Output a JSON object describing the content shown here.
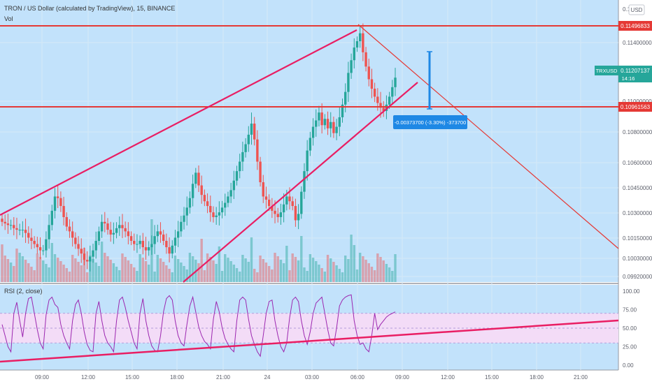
{
  "header": {
    "symbol_title": "TRON / US Dollar (calculated by TradingView), 15, BINANCE",
    "volume_label": "Vol",
    "rsi_label": "RSI (2, close)",
    "currency": "USD"
  },
  "price_axis": {
    "ticks": [
      "0.11400000",
      "0.11000000",
      "0.10800000",
      "0.10600000",
      "0.10450000",
      "0.10300000",
      "0.10150000",
      "0.10030000",
      "0.09920000"
    ],
    "top_partial": "0.11"
  },
  "price_badges": {
    "upper_level": "0.11496833",
    "lower_level": "0.10961563",
    "last_price": "0.11207137",
    "symbol": "TRXUSD",
    "countdown": "14:16"
  },
  "measure": {
    "label": "-0.00373700 (-3.30%) -373700"
  },
  "rsi_axis": {
    "ticks": [
      "100.00",
      "75.00",
      "50.00",
      "25.00",
      "0.00"
    ]
  },
  "time_axis": {
    "ticks": [
      "09:00",
      "12:00",
      "15:00",
      "18:00",
      "21:00",
      "24",
      "03:00",
      "06:00",
      "09:00",
      "12:00",
      "15:00",
      "18:00",
      "21:00"
    ]
  },
  "colors": {
    "background": "#c2e2fb",
    "up": "#26a69a",
    "down": "#ef5350",
    "level_line": "#e53935",
    "trend_line": "#e91e63",
    "rsi_line": "#9c27b0",
    "rsi_band": "#f3dcf7",
    "measure": "#1e88e5"
  },
  "chart_data": {
    "type": "candlestick",
    "symbol": "TRON / US Dollar",
    "interval": "15",
    "exchange": "BINANCE",
    "ylim": [
      0.0992,
      0.117
    ],
    "horizontal_levels": [
      0.11496833,
      0.10961563
    ],
    "last_price": 0.11207137,
    "measure": {
      "change": -0.003737,
      "percent": -3.3,
      "ticks": -373700
    },
    "closes": [
      0.103,
      0.1029,
      0.1028,
      0.1028,
      0.1026,
      0.1025,
      0.1025,
      0.1025,
      0.1023,
      0.102,
      0.1018,
      0.1016,
      0.1014,
      0.1012,
      0.1012,
      0.1019,
      0.1028,
      0.1037,
      0.1046,
      0.1045,
      0.104,
      0.1033,
      0.1027,
      0.1024,
      0.102,
      0.1016,
      0.1013,
      0.101,
      0.1006,
      0.1005,
      0.1008,
      0.1012,
      0.1018,
      0.1024,
      0.103,
      0.1029,
      0.1025,
      0.1022,
      0.1023,
      0.1026,
      0.1028,
      0.1026,
      0.1024,
      0.1021,
      0.1018,
      0.1016,
      0.1016,
      0.1018,
      0.1014,
      0.1012,
      0.1014,
      0.1016,
      0.1021,
      0.1024,
      0.1022,
      0.1018,
      0.1014,
      0.101,
      0.1015,
      0.102,
      0.1024,
      0.103,
      0.1034,
      0.1039,
      0.1045,
      0.1054,
      0.1061,
      0.1053,
      0.1047,
      0.1043,
      0.104,
      0.1036,
      0.1033,
      0.1034,
      0.1036,
      0.1039,
      0.1042,
      0.1046,
      0.105,
      0.1056,
      0.1062,
      0.1068,
      0.1074,
      0.1079,
      0.1085,
      0.1092,
      0.1082,
      0.1068,
      0.1055,
      0.1046,
      0.1044,
      0.104,
      0.1037,
      0.1035,
      0.1033,
      0.1036,
      0.1041,
      0.1046,
      0.1043,
      0.104,
      0.1031,
      0.1035,
      0.1049,
      0.1062,
      0.1075,
      0.1083,
      0.109,
      0.1094,
      0.1099,
      0.1091,
      0.1095,
      0.1089,
      0.1093,
      0.1086,
      0.109,
      0.1096,
      0.1104,
      0.1112,
      0.1124,
      0.1132,
      0.114,
      0.1144,
      0.1149,
      0.1137,
      0.1128,
      0.112,
      0.1114,
      0.1109,
      0.1105,
      0.1102,
      0.11,
      0.1104,
      0.1109,
      0.1115,
      0.1121
    ]
  },
  "rsi_data": {
    "ylim": [
      0,
      100
    ],
    "band": [
      30,
      70
    ],
    "values": [
      55,
      40,
      25,
      18,
      70,
      85,
      60,
      38,
      70,
      90,
      92,
      70,
      48,
      30,
      22,
      68,
      88,
      92,
      82,
      78,
      55,
      40,
      30,
      22,
      60,
      82,
      88,
      70,
      45,
      28,
      20,
      18,
      70,
      86,
      60,
      40,
      30,
      25,
      18,
      60,
      88,
      92,
      78,
      60,
      45,
      30,
      22,
      70,
      90,
      60,
      40,
      26,
      20,
      18,
      40,
      72,
      90,
      94,
      88,
      60,
      40,
      30,
      26,
      55,
      80,
      92,
      72,
      52,
      40,
      32,
      28,
      22,
      62,
      86,
      72,
      50,
      36,
      28,
      22,
      18,
      60,
      88,
      92,
      88,
      62,
      40,
      28,
      18,
      12,
      40,
      70,
      86,
      88,
      60,
      40,
      25,
      18,
      30,
      64,
      88,
      92,
      86,
      60,
      40,
      28,
      45,
      70,
      84,
      88,
      92,
      70,
      48,
      30,
      26,
      50,
      80,
      88,
      92,
      94,
      95,
      60,
      40,
      28,
      30,
      22,
      18,
      40,
      70,
      48,
      55,
      60,
      65,
      68,
      70,
      72
    ]
  }
}
